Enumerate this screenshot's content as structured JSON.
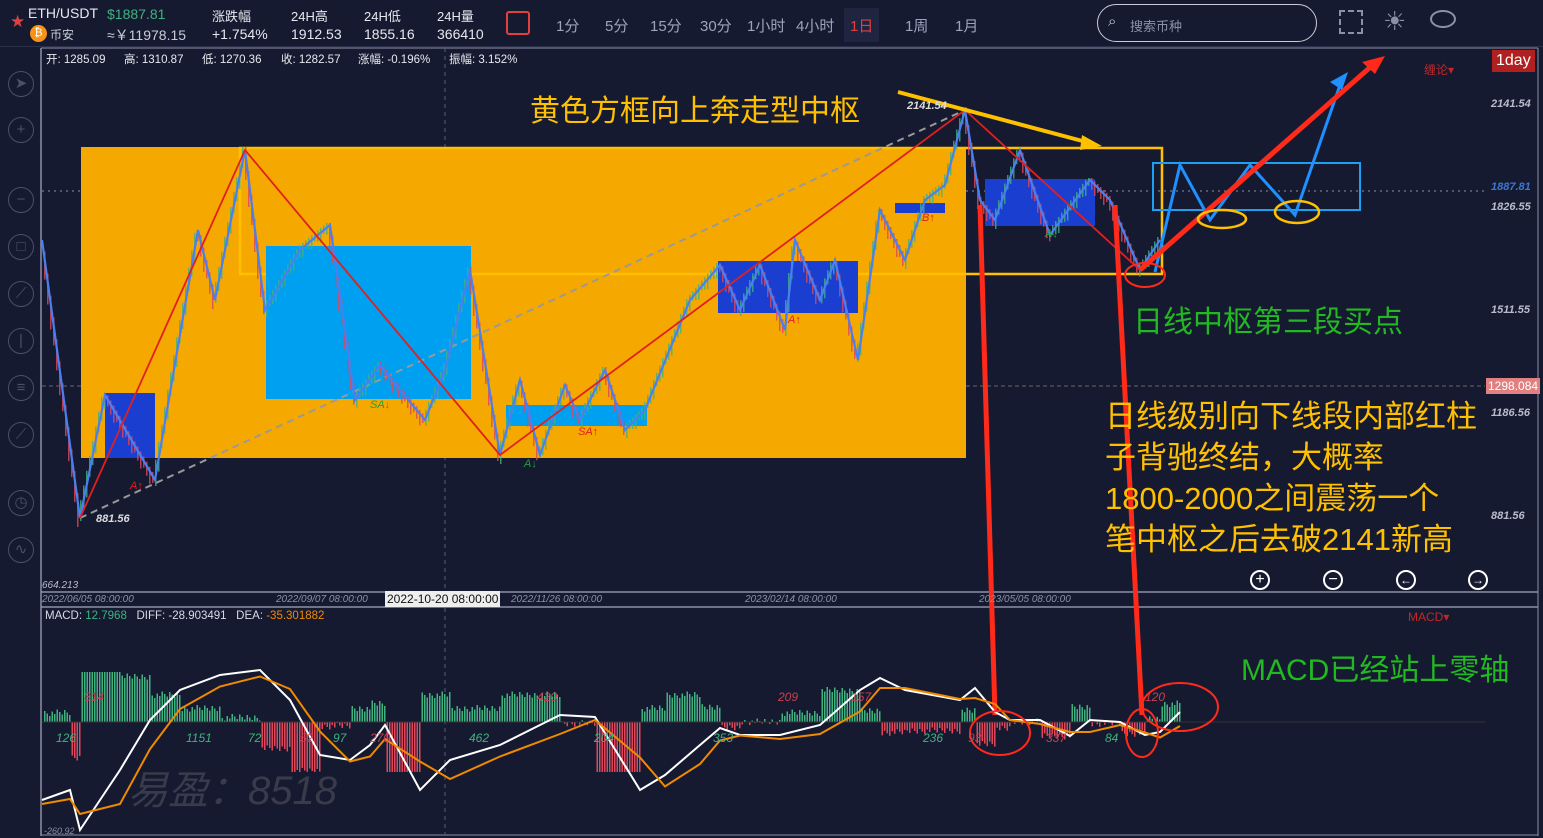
{
  "header": {
    "symbol": "ETH/USDT",
    "price": "$1887.81",
    "exchange": "币安",
    "cny": "≈￥11978.15",
    "stats": [
      {
        "label": "涨跌幅",
        "value": "+1.754%"
      },
      {
        "label": "24H高",
        "value": "1912.53"
      },
      {
        "label": "24H低",
        "value": "1855.16"
      },
      {
        "label": "24H量",
        "value": "366410"
      }
    ],
    "timeframes": [
      "1分",
      "5分",
      "15分",
      "30分",
      "1小时",
      "4小时",
      "1日",
      "1周",
      "1月"
    ],
    "active_timeframe": "1日",
    "search_placeholder": "搜索币种"
  },
  "toolbar_icons": [
    "cursor-icon",
    "crosshair-icon",
    "minus-icon",
    "rect-icon",
    "line-icon",
    "vertical-line-icon",
    "parallel-icon",
    "ruler-icon",
    "alarm-icon",
    "wave-icon"
  ],
  "ohlc": {
    "open": "开: 1285.09",
    "high": "高: 1310.87",
    "low": "低: 1270.36",
    "close": "收: 1282.57",
    "change": "涨幅: -0.196%",
    "amp": "振幅: 3.152%"
  },
  "main": {
    "interval_badge": "1day",
    "indicator": "缠论▾",
    "price_labels": [
      "2141.54",
      "1887.81",
      "1826.55",
      "1511.55",
      "1298.084",
      "1186.56",
      "881.56",
      "664.213"
    ],
    "high_mark": "2141.54",
    "low_mark": "881.56",
    "markers": [
      "A↑",
      "SA↓",
      "A↓",
      "SA↑",
      "A↑",
      "B↑",
      "A↓"
    ],
    "time_labels": [
      "2022/06/05 08:00:00",
      "2022/09/07 08:00:00",
      "2022/11/26 08:00:00",
      "2023/02/14 08:00:00",
      "2023/05/05 08:00:00"
    ],
    "crosshair_time": "2022-10-20 08:00:00"
  },
  "annotations": {
    "title": "黄色方框向上奔走型中枢",
    "buy_point": "日线中枢第三段买点",
    "note": [
      "日线级别向下线段内部红柱",
      "子背驰终结，大概率",
      "1800-2000之间震荡一个",
      "笔中枢之后去破2141新高"
    ],
    "macd_note": "MACD已经站上零轴"
  },
  "macd": {
    "label": "MACD:",
    "macd": "12.7968",
    "diff": "DIFF: -28.903491",
    "dea": "DEA:",
    "dea_val": "-35.301882",
    "indicator": "MACD▾",
    "area_labels": [
      "314",
      "126",
      "1151",
      "72",
      "52",
      "97",
      "270",
      "462",
      "420",
      "204",
      "353",
      "209",
      "157",
      "236",
      "93",
      "337",
      "84",
      "120"
    ],
    "bottom": "-260.92"
  },
  "watermark": "易盈：8518",
  "colors": {
    "bg": "#161a30",
    "up": "#3fb27f",
    "down": "#e0465a",
    "zone": "#f5a800",
    "pivot_blue": "#00a0f0",
    "pivot_dark": "#1a3fd0",
    "annotation_red": "#ff2a1a",
    "annotation_yellow": "#ffc000",
    "annotation_green": "#22b822"
  }
}
